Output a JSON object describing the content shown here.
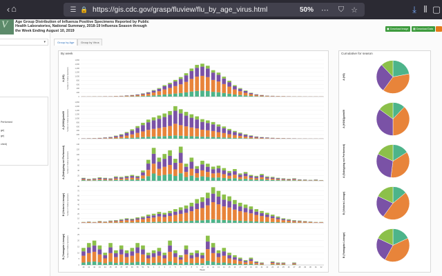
{
  "browser": {
    "url": "https://gis.cdc.gov/grasp/fluview/flu_by_age_virus.html",
    "zoom": "50%"
  },
  "header": {
    "title": "Age Group Distribution of Influenza Positive Specimens Reported by Public Health Laboratories, National Summary, 2018-19 Influenza Season through the Week Ending August 10, 2019",
    "download_image": "Download Image",
    "download_data": "Download Data"
  },
  "left_panel": {
    "items": [
      "Performed",
      "ge)",
      "ge)",
      "ched)"
    ]
  },
  "tabs": [
    {
      "label": "Group by Age"
    },
    {
      "label": "Group by Virus"
    }
  ],
  "by_week": {
    "title": "By week",
    "xlabel": "Week",
    "weeks": [
      "40",
      "41",
      "42",
      "43",
      "44",
      "45",
      "46",
      "47",
      "48",
      "49",
      "50",
      "51",
      "52",
      "1",
      "2",
      "3",
      "4",
      "5",
      "6",
      "7",
      "8",
      "9",
      "10",
      "11",
      "12",
      "13",
      "14",
      "15",
      "16",
      "17",
      "18",
      "19",
      "20",
      "21",
      "22",
      "23",
      "24",
      "25",
      "26",
      "27",
      "28",
      "29",
      "30",
      "31",
      "32"
    ]
  },
  "cumulative": {
    "title": "Cumulative for season"
  },
  "colors": {
    "seg1": "#4db48a",
    "seg2": "#e8843a",
    "seg3": "#7a52a6",
    "seg4": "#8cc04a"
  },
  "chart_data": [
    {
      "type": "bar",
      "label": "A (H3)",
      "ylabel": "Number of Positive Specimens",
      "yticks": [
        "0",
        "200",
        "400",
        "600",
        "800",
        "1,000",
        "1,200",
        "1,400",
        "1,600",
        "1,800"
      ],
      "ylim": [
        0,
        1800
      ],
      "categories": [
        "40",
        "41",
        "42",
        "43",
        "44",
        "45",
        "46",
        "47",
        "48",
        "49",
        "50",
        "51",
        "52",
        "1",
        "2",
        "3",
        "4",
        "5",
        "6",
        "7",
        "8",
        "9",
        "10",
        "11",
        "12",
        "13",
        "14",
        "15",
        "16",
        "17",
        "18",
        "19",
        "20",
        "21",
        "22",
        "23",
        "24",
        "25",
        "26",
        "27",
        "28",
        "29",
        "30",
        "31",
        "32"
      ],
      "series_totals": [
        10,
        10,
        15,
        15,
        20,
        20,
        30,
        40,
        60,
        80,
        110,
        160,
        220,
        320,
        420,
        560,
        680,
        820,
        960,
        1150,
        1380,
        1560,
        1620,
        1520,
        1300,
        1180,
        980,
        780,
        560,
        420,
        300,
        190,
        120,
        80,
        50,
        40,
        30,
        25,
        20,
        15,
        15,
        10,
        10,
        10,
        10
      ]
    },
    {
      "type": "bar",
      "label": "A (H1N1)pdm09",
      "ylabel": "Number of Positive Specimens",
      "yticks": [
        "0",
        "200",
        "400",
        "600",
        "800",
        "1,000",
        "1,200",
        "1,400",
        "1,600",
        "1,800"
      ],
      "ylim": [
        0,
        1800
      ],
      "categories": [
        "40",
        "41",
        "42",
        "43",
        "44",
        "45",
        "46",
        "47",
        "48",
        "49",
        "50",
        "51",
        "52",
        "1",
        "2",
        "3",
        "4",
        "5",
        "6",
        "7",
        "8",
        "9",
        "10",
        "11",
        "12",
        "13",
        "14",
        "15",
        "16",
        "17",
        "18",
        "19",
        "20",
        "21",
        "22",
        "23",
        "24",
        "25",
        "26",
        "27",
        "28",
        "29",
        "30",
        "31",
        "32"
      ],
      "series_totals": [
        20,
        25,
        30,
        40,
        60,
        90,
        150,
        220,
        330,
        460,
        620,
        780,
        940,
        1050,
        1140,
        1240,
        1360,
        1600,
        1450,
        1320,
        1200,
        1100,
        960,
        900,
        820,
        700,
        600,
        480,
        380,
        300,
        220,
        160,
        110,
        80,
        60,
        45,
        35,
        30,
        25,
        20,
        15,
        15,
        10,
        10,
        10
      ]
    },
    {
      "type": "bar",
      "label": "A (Subtyping not Performed)",
      "ylabel": "Number of Positive Specimens",
      "yticks": [
        "0",
        "20",
        "40",
        "60",
        "80",
        "100",
        "120",
        "140"
      ],
      "ylim": [
        0,
        150
      ],
      "categories": [
        "40",
        "41",
        "42",
        "43",
        "44",
        "45",
        "46",
        "47",
        "48",
        "49",
        "50",
        "51",
        "52",
        "1",
        "2",
        "3",
        "4",
        "5",
        "6",
        "7",
        "8",
        "9",
        "10",
        "11",
        "12",
        "13",
        "14",
        "15",
        "16",
        "17",
        "18",
        "19",
        "20",
        "21",
        "22",
        "23",
        "24",
        "25",
        "26",
        "27",
        "28",
        "29",
        "30",
        "31",
        "32"
      ],
      "series_totals": [
        12,
        8,
        10,
        14,
        12,
        10,
        18,
        16,
        20,
        24,
        20,
        42,
        86,
        135,
        95,
        110,
        125,
        90,
        140,
        70,
        95,
        60,
        82,
        70,
        58,
        62,
        52,
        40,
        48,
        30,
        36,
        24,
        20,
        28,
        18,
        16,
        12,
        10,
        8,
        10,
        6,
        5,
        4,
        5,
        3
      ]
    },
    {
      "type": "bar",
      "label": "B (Victoria Lineage)",
      "ylabel": "Number of Positive Specimens",
      "yticks": [
        "0",
        "10",
        "20",
        "30",
        "40",
        "50",
        "60",
        "70",
        "80"
      ],
      "ylim": [
        0,
        80
      ],
      "categories": [
        "40",
        "41",
        "42",
        "43",
        "44",
        "45",
        "46",
        "47",
        "48",
        "49",
        "50",
        "51",
        "52",
        "1",
        "2",
        "3",
        "4",
        "5",
        "6",
        "7",
        "8",
        "9",
        "10",
        "11",
        "12",
        "13",
        "14",
        "15",
        "16",
        "17",
        "18",
        "19",
        "20",
        "21",
        "22",
        "23",
        "24",
        "25",
        "26",
        "27",
        "28",
        "29",
        "30",
        "31",
        "32"
      ],
      "series_totals": [
        2,
        3,
        2,
        4,
        3,
        5,
        6,
        8,
        10,
        9,
        12,
        14,
        18,
        20,
        24,
        22,
        26,
        30,
        34,
        38,
        44,
        52,
        56,
        66,
        78,
        70,
        62,
        58,
        50,
        44,
        40,
        36,
        30,
        26,
        22,
        18,
        14,
        10,
        8,
        6,
        5,
        4,
        3,
        2,
        2
      ]
    },
    {
      "type": "bar",
      "label": "B (Yamagata Lineage)",
      "ylabel": "Number of Positive Specimens",
      "yticks": [
        "0",
        "5",
        "10",
        "15",
        "20",
        "25",
        "30"
      ],
      "ylim": [
        0,
        30
      ],
      "categories": [
        "40",
        "41",
        "42",
        "43",
        "44",
        "45",
        "46",
        "47",
        "48",
        "49",
        "50",
        "51",
        "52",
        "1",
        "2",
        "3",
        "4",
        "5",
        "6",
        "7",
        "8",
        "9",
        "10",
        "11",
        "12",
        "13",
        "14",
        "15",
        "16",
        "17",
        "18",
        "19",
        "20",
        "21",
        "22",
        "23",
        "24",
        "25",
        "26",
        "27",
        "28",
        "29",
        "30",
        "31",
        "32"
      ],
      "series_totals": [
        14,
        18,
        20,
        16,
        10,
        18,
        12,
        16,
        12,
        14,
        18,
        16,
        10,
        12,
        14,
        10,
        20,
        12,
        8,
        16,
        10,
        12,
        10,
        24,
        18,
        12,
        14,
        10,
        8,
        6,
        4,
        6,
        3,
        2,
        0,
        3,
        2,
        2,
        0,
        2,
        0,
        0,
        0,
        0,
        0
      ]
    }
  ],
  "pie_data": [
    {
      "label": "A (H3)",
      "type": "pie",
      "values": [
        22,
        38,
        28,
        12
      ]
    },
    {
      "label": "A (H1N1)pdm09",
      "type": "pie",
      "values": [
        12,
        38,
        35,
        15
      ]
    },
    {
      "label": "A (Subtyping not Performed)",
      "type": "pie",
      "values": [
        16,
        36,
        30,
        18
      ]
    },
    {
      "label": "B (Victoria Lineage)",
      "type": "pie",
      "values": [
        14,
        46,
        22,
        18
      ]
    },
    {
      "label": "B (Yamagata Lineage)",
      "type": "pie",
      "values": [
        18,
        40,
        24,
        18
      ]
    }
  ]
}
